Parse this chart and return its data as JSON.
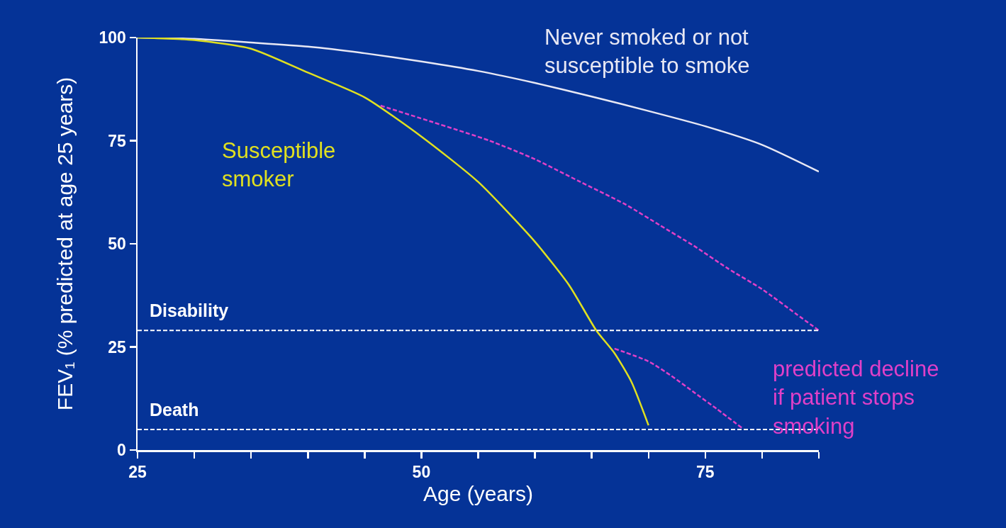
{
  "chart_data": {
    "type": "line",
    "xlabel": "Age (years)",
    "ylabel": "FEV₁ (% predicted at age 25 years)",
    "xlim": [
      25,
      85
    ],
    "ylim": [
      0,
      100
    ],
    "xticks": [
      25,
      {
        "value": 30,
        "label": null
      },
      {
        "value": 35,
        "label": null
      },
      {
        "value": 40,
        "label": null
      },
      {
        "value": 45,
        "label": null
      },
      50,
      {
        "value": 55,
        "label": null
      },
      {
        "value": 60,
        "label": null
      },
      {
        "value": 65,
        "label": null
      },
      {
        "value": 70,
        "label": null
      },
      75,
      {
        "value": 80,
        "label": null
      },
      {
        "value": 85,
        "label": null
      }
    ],
    "yticks": [
      0,
      25,
      50,
      75,
      100
    ],
    "grid": false,
    "legend": false,
    "marker": "none",
    "series": [
      {
        "name": "Never smoked or not susceptible to smoke",
        "color": "#e8e8f4",
        "line_style": "solid",
        "x": [
          25,
          30,
          35,
          40,
          45,
          50,
          55,
          60,
          65,
          70,
          75,
          80,
          85
        ],
        "values": [
          100,
          99.7,
          98.8,
          97.8,
          96.2,
          94.2,
          91.9,
          89,
          85.7,
          82.2,
          78.5,
          74,
          67.5
        ]
      },
      {
        "name": "Susceptible smoker",
        "color": "#e0e020",
        "line_style": "solid",
        "x": [
          25,
          30,
          35,
          40,
          45,
          50,
          55,
          60,
          63,
          65.4,
          67,
          68.5,
          70
        ],
        "values": [
          100,
          99.4,
          97.3,
          91.5,
          85.5,
          76,
          65,
          50.5,
          40,
          29,
          23.5,
          16.5,
          6
        ]
      },
      {
        "name": "predicted decline if patient stops smoking",
        "color": "#e040c8",
        "line_style": "dashed",
        "x": [
          46.4,
          51,
          56,
          60,
          64,
          68,
          71,
          74,
          77,
          80,
          83,
          85
        ],
        "values": [
          83.5,
          79.5,
          75,
          70.5,
          65,
          59.5,
          54.5,
          49.5,
          44,
          39,
          33,
          29
        ]
      },
      {
        "color": "#e040c8",
        "line_style": "dashed",
        "x": [
          67,
          70,
          72,
          74,
          76,
          78.3
        ],
        "values": [
          24.6,
          21.5,
          18,
          14,
          10,
          5.2
        ]
      }
    ],
    "ref_lines": [
      {
        "axis": "y",
        "value": 29,
        "label": "Disability",
        "color": "#ffffff",
        "line_style": "dashed"
      },
      {
        "axis": "y",
        "value": 5,
        "label": "Death",
        "color": "#ffffff",
        "line_style": "dashed"
      }
    ]
  }
}
